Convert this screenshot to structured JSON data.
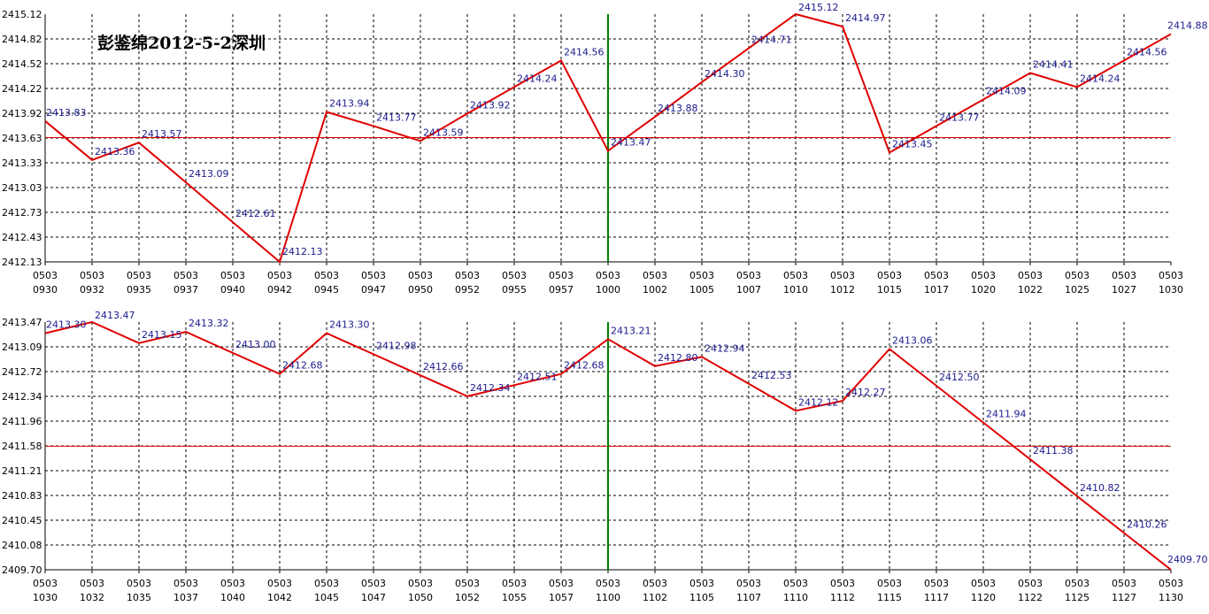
{
  "chart_data": [
    {
      "type": "line",
      "title": "彭鉴绵2012-5-2深圳",
      "ylim": [
        2412.13,
        2415.12
      ],
      "y_ticks": [
        "2415.12",
        "2414.82",
        "2414.52",
        "2414.22",
        "2413.92",
        "2413.63",
        "2413.33",
        "2413.03",
        "2412.73",
        "2412.43",
        "2412.13"
      ],
      "x_ticks": [
        [
          "0503",
          "0930"
        ],
        [
          "0503",
          "0932"
        ],
        [
          "0503",
          "0935"
        ],
        [
          "0503",
          "0937"
        ],
        [
          "0503",
          "0940"
        ],
        [
          "0503",
          "0942"
        ],
        [
          "0503",
          "0945"
        ],
        [
          "0503",
          "0947"
        ],
        [
          "0503",
          "0950"
        ],
        [
          "0503",
          "0952"
        ],
        [
          "0503",
          "0955"
        ],
        [
          "0503",
          "0957"
        ],
        [
          "0503",
          "1000"
        ],
        [
          "0503",
          "1002"
        ],
        [
          "0503",
          "1005"
        ],
        [
          "0503",
          "1007"
        ],
        [
          "0503",
          "1010"
        ],
        [
          "0503",
          "1012"
        ],
        [
          "0503",
          "1015"
        ],
        [
          "0503",
          "1017"
        ],
        [
          "0503",
          "1020"
        ],
        [
          "0503",
          "1022"
        ],
        [
          "0503",
          "1025"
        ],
        [
          "0503",
          "1027"
        ],
        [
          "0503",
          "1030"
        ]
      ],
      "reference_line": 2413.63,
      "marker_index": 12,
      "points": [
        {
          "i": 0,
          "v": 2413.83,
          "label": "2413.83"
        },
        {
          "i": 1,
          "v": 2413.36,
          "label": "2413.36"
        },
        {
          "i": 2,
          "v": 2413.57,
          "label": "2413.57"
        },
        {
          "i": 3,
          "v": 2413.09,
          "label": "2413.09"
        },
        {
          "i": 4,
          "v": 2412.61,
          "label": "2412.61"
        },
        {
          "i": 5,
          "v": 2412.13,
          "label": "2412.13"
        },
        {
          "i": 6,
          "v": 2413.94,
          "label": "2413.94"
        },
        {
          "i": 7,
          "v": 2413.77,
          "label": "2413.77"
        },
        {
          "i": 8,
          "v": 2413.59,
          "label": "2413.59"
        },
        {
          "i": 9,
          "v": 2413.92,
          "label": "2413.92"
        },
        {
          "i": 10,
          "v": 2414.24,
          "label": "2414.24"
        },
        {
          "i": 11,
          "v": 2414.56,
          "label": "2414.56"
        },
        {
          "i": 12,
          "v": 2413.47,
          "label": "2413.47"
        },
        {
          "i": 13,
          "v": 2413.88,
          "label": "2413.88"
        },
        {
          "i": 14,
          "v": 2414.3,
          "label": "2414.30"
        },
        {
          "i": 15,
          "v": 2414.71,
          "label": "2414.71"
        },
        {
          "i": 16,
          "v": 2415.12,
          "label": "2415.12"
        },
        {
          "i": 17,
          "v": 2414.97,
          "label": "2414.97"
        },
        {
          "i": 18,
          "v": 2413.45,
          "label": "2413.45"
        },
        {
          "i": 19,
          "v": 2413.77,
          "label": "2413.77"
        },
        {
          "i": 20,
          "v": 2414.09,
          "label": "2414.09"
        },
        {
          "i": 21,
          "v": 2414.41,
          "label": "2414.41"
        },
        {
          "i": 22,
          "v": 2414.24,
          "label": "2414.24"
        },
        {
          "i": 23,
          "v": 2414.56,
          "label": "2414.56"
        },
        {
          "i": 24,
          "v": 2414.88,
          "label": "2414.88"
        }
      ]
    },
    {
      "type": "line",
      "title": "",
      "ylim": [
        2409.7,
        2413.47
      ],
      "y_ticks": [
        "2413.47",
        "2413.09",
        "2412.72",
        "2412.34",
        "2411.96",
        "2411.58",
        "2411.21",
        "2410.83",
        "2410.45",
        "2410.08",
        "2409.70"
      ],
      "x_ticks": [
        [
          "0503",
          "1030"
        ],
        [
          "0503",
          "1032"
        ],
        [
          "0503",
          "1035"
        ],
        [
          "0503",
          "1037"
        ],
        [
          "0503",
          "1040"
        ],
        [
          "0503",
          "1042"
        ],
        [
          "0503",
          "1045"
        ],
        [
          "0503",
          "1047"
        ],
        [
          "0503",
          "1050"
        ],
        [
          "0503",
          "1052"
        ],
        [
          "0503",
          "1055"
        ],
        [
          "0503",
          "1057"
        ],
        [
          "0503",
          "1100"
        ],
        [
          "0503",
          "1102"
        ],
        [
          "0503",
          "1105"
        ],
        [
          "0503",
          "1107"
        ],
        [
          "0503",
          "1110"
        ],
        [
          "0503",
          "1112"
        ],
        [
          "0503",
          "1115"
        ],
        [
          "0503",
          "1117"
        ],
        [
          "0503",
          "1120"
        ],
        [
          "0503",
          "1122"
        ],
        [
          "0503",
          "1125"
        ],
        [
          "0503",
          "1127"
        ],
        [
          "0503",
          "1130"
        ]
      ],
      "reference_line": 2411.58,
      "marker_index": 12,
      "points": [
        {
          "i": 0,
          "v": 2413.3,
          "label": "2413.30"
        },
        {
          "i": 1,
          "v": 2413.47,
          "label": "2413.47"
        },
        {
          "i": 2,
          "v": 2413.15,
          "label": "2413.15"
        },
        {
          "i": 3,
          "v": 2413.32,
          "label": "2413.32"
        },
        {
          "i": 4,
          "v": 2413.0,
          "label": "2413.00"
        },
        {
          "i": 5,
          "v": 2412.68,
          "label": "2412.68"
        },
        {
          "i": 6,
          "v": 2413.3,
          "label": "2413.30"
        },
        {
          "i": 7,
          "v": 2412.98,
          "label": "2412.98"
        },
        {
          "i": 8,
          "v": 2412.66,
          "label": "2412.66"
        },
        {
          "i": 9,
          "v": 2412.34,
          "label": "2412.34"
        },
        {
          "i": 10,
          "v": 2412.51,
          "label": "2412.51"
        },
        {
          "i": 11,
          "v": 2412.68,
          "label": "2412.68"
        },
        {
          "i": 12,
          "v": 2413.21,
          "label": "2413.21"
        },
        {
          "i": 13,
          "v": 2412.8,
          "label": "2412.80"
        },
        {
          "i": 14,
          "v": 2412.94,
          "label": "2412.94"
        },
        {
          "i": 15,
          "v": 2412.53,
          "label": "2412.53"
        },
        {
          "i": 16,
          "v": 2412.12,
          "label": "2412.12"
        },
        {
          "i": 17,
          "v": 2412.27,
          "label": "2412.27"
        },
        {
          "i": 18,
          "v": 2413.06,
          "label": "2413.06"
        },
        {
          "i": 19,
          "v": 2412.5,
          "label": "2412.50"
        },
        {
          "i": 20,
          "v": 2411.94,
          "label": "2411.94"
        },
        {
          "i": 21,
          "v": 2411.38,
          "label": "2411.38"
        },
        {
          "i": 22,
          "v": 2410.82,
          "label": "2410.82"
        },
        {
          "i": 23,
          "v": 2410.26,
          "label": "2410.26"
        },
        {
          "i": 24,
          "v": 2409.7,
          "label": "2409.70"
        }
      ]
    }
  ],
  "colors": {
    "series_line": "#e00000",
    "reference_line": "#e00000",
    "marker_line": "#008000",
    "grid": "#000000",
    "label_text": "#1a1a8c"
  }
}
